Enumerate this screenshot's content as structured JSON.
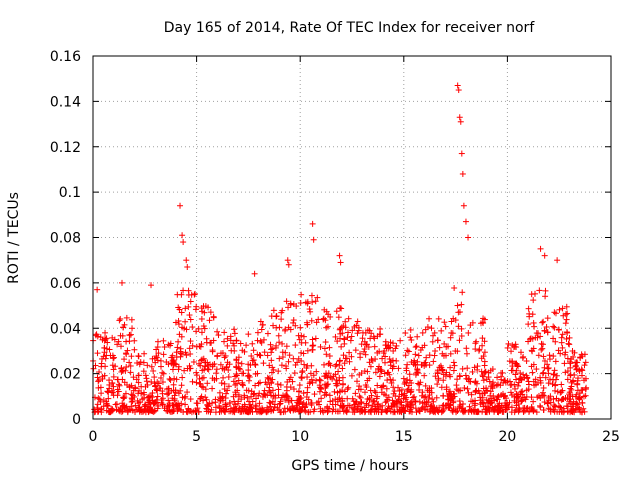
{
  "chart_data": {
    "type": "scatter",
    "title": "Day 165 of 2014, Rate Of TEC Index for receiver norf",
    "xlabel": "GPS time / hours",
    "ylabel": "ROTI / TECUs",
    "xlim": [
      0,
      25
    ],
    "ylim": [
      0,
      0.16
    ],
    "xticks": [
      0,
      5,
      10,
      15,
      20,
      25
    ],
    "xtick_labels": [
      "0",
      "5",
      "10",
      "15",
      "20",
      "25"
    ],
    "yticks": [
      0,
      0.02,
      0.04,
      0.06,
      0.08,
      0.1,
      0.12,
      0.14,
      0.16
    ],
    "ytick_labels": [
      "0",
      "0.02",
      "0.04",
      "0.06",
      "0.08",
      "0.1",
      "0.12",
      "0.14",
      "0.16"
    ],
    "grid": true,
    "marker": "+",
    "color": "#ff0000",
    "series": [
      {
        "name": "ROTI",
        "x": [
          0.2,
          1.4,
          2.8,
          4.2,
          4.3,
          4.35,
          4.5,
          4.55,
          7.8,
          9.4,
          9.45,
          10.6,
          10.65,
          11.9,
          11.95,
          17.6,
          17.65,
          17.7,
          17.75,
          17.8,
          17.85,
          17.9,
          18.0,
          18.1,
          21.6,
          21.8,
          22.4
        ],
        "y": [
          0.057,
          0.06,
          0.059,
          0.094,
          0.081,
          0.078,
          0.07,
          0.067,
          0.064,
          0.07,
          0.068,
          0.086,
          0.079,
          0.072,
          0.069,
          0.147,
          0.145,
          0.133,
          0.131,
          0.117,
          0.108,
          0.094,
          0.087,
          0.08,
          0.075,
          0.072,
          0.07
        ],
        "bulk_segments": [
          {
            "x_start": 0.0,
            "x_end": 1.0,
            "y_min": 0.003,
            "y_max": 0.038
          },
          {
            "x_start": 1.0,
            "x_end": 2.0,
            "y_min": 0.003,
            "y_max": 0.045
          },
          {
            "x_start": 2.0,
            "x_end": 3.0,
            "y_min": 0.003,
            "y_max": 0.03
          },
          {
            "x_start": 3.0,
            "x_end": 4.0,
            "y_min": 0.003,
            "y_max": 0.035
          },
          {
            "x_start": 4.0,
            "x_end": 5.0,
            "y_min": 0.003,
            "y_max": 0.058
          },
          {
            "x_start": 5.0,
            "x_end": 6.0,
            "y_min": 0.003,
            "y_max": 0.05
          },
          {
            "x_start": 6.0,
            "x_end": 7.0,
            "y_min": 0.003,
            "y_max": 0.04
          },
          {
            "x_start": 7.0,
            "x_end": 8.0,
            "y_min": 0.003,
            "y_max": 0.04
          },
          {
            "x_start": 8.0,
            "x_end": 9.0,
            "y_min": 0.003,
            "y_max": 0.048
          },
          {
            "x_start": 9.0,
            "x_end": 10.0,
            "y_min": 0.003,
            "y_max": 0.052
          },
          {
            "x_start": 10.0,
            "x_end": 11.0,
            "y_min": 0.003,
            "y_max": 0.055
          },
          {
            "x_start": 11.0,
            "x_end": 12.0,
            "y_min": 0.003,
            "y_max": 0.05
          },
          {
            "x_start": 12.0,
            "x_end": 13.0,
            "y_min": 0.003,
            "y_max": 0.045
          },
          {
            "x_start": 13.0,
            "x_end": 14.0,
            "y_min": 0.003,
            "y_max": 0.04
          },
          {
            "x_start": 14.0,
            "x_end": 15.0,
            "y_min": 0.003,
            "y_max": 0.035
          },
          {
            "x_start": 15.0,
            "x_end": 16.0,
            "y_min": 0.003,
            "y_max": 0.04
          },
          {
            "x_start": 16.0,
            "x_end": 17.0,
            "y_min": 0.003,
            "y_max": 0.045
          },
          {
            "x_start": 17.0,
            "x_end": 18.0,
            "y_min": 0.003,
            "y_max": 0.06
          },
          {
            "x_start": 18.0,
            "x_end": 19.0,
            "y_min": 0.003,
            "y_max": 0.045
          },
          {
            "x_start": 19.0,
            "x_end": 20.0,
            "y_min": 0.003,
            "y_max": 0.022
          },
          {
            "x_start": 20.0,
            "x_end": 21.0,
            "y_min": 0.003,
            "y_max": 0.035
          },
          {
            "x_start": 21.0,
            "x_end": 22.0,
            "y_min": 0.003,
            "y_max": 0.058
          },
          {
            "x_start": 22.0,
            "x_end": 23.0,
            "y_min": 0.003,
            "y_max": 0.05
          },
          {
            "x_start": 23.0,
            "x_end": 23.8,
            "y_min": 0.003,
            "y_max": 0.03
          }
        ]
      }
    ]
  }
}
